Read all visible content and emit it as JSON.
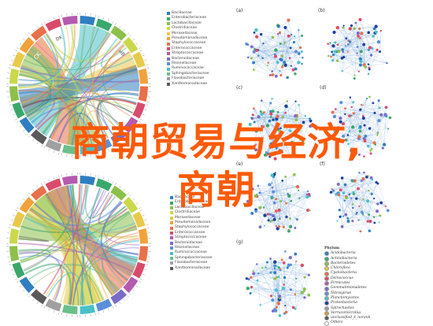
{
  "image": {
    "overlay_title_line1": "商朝贸易与经济,",
    "overlay_title_line2": "商朝",
    "accent_color": "#ff5a08"
  },
  "chord_top": {
    "sector_labels": [
      "CK",
      "DK",
      "HB"
    ],
    "legend": [
      {
        "label": "Bacillaceae",
        "color": "#2f7fc0"
      },
      {
        "label": "Enterobacteriaceae",
        "color": "#3aa86b"
      },
      {
        "label": "Lactobacillaceae",
        "color": "#8cc04a"
      },
      {
        "label": "Clostridiaceae",
        "color": "#c9d94a"
      },
      {
        "label": "Moraxellaceae",
        "color": "#e8c94b"
      },
      {
        "label": "Pseudomonadaceae",
        "color": "#f2a23a"
      },
      {
        "label": "Staphylococcaceae",
        "color": "#e8704a"
      },
      {
        "label": "Enterococcaceae",
        "color": "#d94b6a"
      },
      {
        "label": "Streptococcaceae",
        "color": "#b55ab0"
      },
      {
        "label": "Bacteroidaceae",
        "color": "#7b6bc9"
      },
      {
        "label": "Rikenellaceae",
        "color": "#5b8fd9"
      },
      {
        "label": "Ruminococcaceae",
        "color": "#4ac0c9"
      },
      {
        "label": "Sphingobacteriaceae",
        "color": "#6ac08a"
      },
      {
        "label": "Flavobacteriaceae",
        "color": "#a0a0a0"
      },
      {
        "label": "Xanthomonadaceae",
        "color": "#5a5a5a"
      }
    ]
  },
  "chord_bottom": {
    "legend": [
      {
        "label": "Bacillaceae",
        "color": "#2f7fc0"
      },
      {
        "label": "Enterobacteriaceae",
        "color": "#3aa86b"
      },
      {
        "label": "Lactobacillaceae",
        "color": "#8cc04a"
      },
      {
        "label": "Clostridiaceae",
        "color": "#c9d94a"
      },
      {
        "label": "Moraxellaceae",
        "color": "#e8c94b"
      },
      {
        "label": "Pseudomonadaceae",
        "color": "#f2a23a"
      },
      {
        "label": "Staphylococcaceae",
        "color": "#e8704a"
      },
      {
        "label": "Enterococcaceae",
        "color": "#d94b6a"
      },
      {
        "label": "Streptococcaceae",
        "color": "#b55ab0"
      },
      {
        "label": "Bacteroidaceae",
        "color": "#7b6bc9"
      },
      {
        "label": "Rikenellaceae",
        "color": "#5b8fd9"
      },
      {
        "label": "Ruminococcaceae",
        "color": "#4ac0c9"
      },
      {
        "label": "Sphingobacteriaceae",
        "color": "#6ac08a"
      },
      {
        "label": "Flavobacteriaceae",
        "color": "#a0a0a0"
      },
      {
        "label": "Xanthomonadaceae",
        "color": "#5a5a5a"
      }
    ]
  },
  "networks": [
    {
      "label": "(a)"
    },
    {
      "label": "(b)"
    },
    {
      "label": "(c)"
    },
    {
      "label": "(d)"
    },
    {
      "label": "(e)"
    },
    {
      "label": "(f)"
    },
    {
      "label": "(g)"
    }
  ],
  "phyla_legend": {
    "title": "Phylum",
    "items": [
      {
        "label": "Acidobacteria",
        "color": "#2f7fc0"
      },
      {
        "label": "Actinobacteria",
        "color": "#3aa86b"
      },
      {
        "label": "Bacteroidetes",
        "color": "#8cc04a"
      },
      {
        "label": "Chloroflexi",
        "color": "#e8c94b"
      },
      {
        "label": "Cyanobacteria",
        "color": "#e8704a"
      },
      {
        "label": "Deinococcus",
        "color": "#d94b6a"
      },
      {
        "label": "Firmicutes",
        "color": "#b55ab0"
      },
      {
        "label": "Gemmatimonadetes",
        "color": "#7b6bc9"
      },
      {
        "label": "Nitrospirae",
        "color": "#5b8fd9"
      },
      {
        "label": "Planctomycetes",
        "color": "#4ac0c9"
      },
      {
        "label": "Proteobacteria",
        "color": "#1f3fa0"
      },
      {
        "label": "Spirochaetes",
        "color": "#a0a0a0"
      },
      {
        "label": "Verrucomicrobia",
        "color": "#c9a04a"
      },
      {
        "label": "unclassified_k_norank",
        "color": "#5a5a5a"
      },
      {
        "label": "Others",
        "color": "#ffffff"
      }
    ]
  }
}
